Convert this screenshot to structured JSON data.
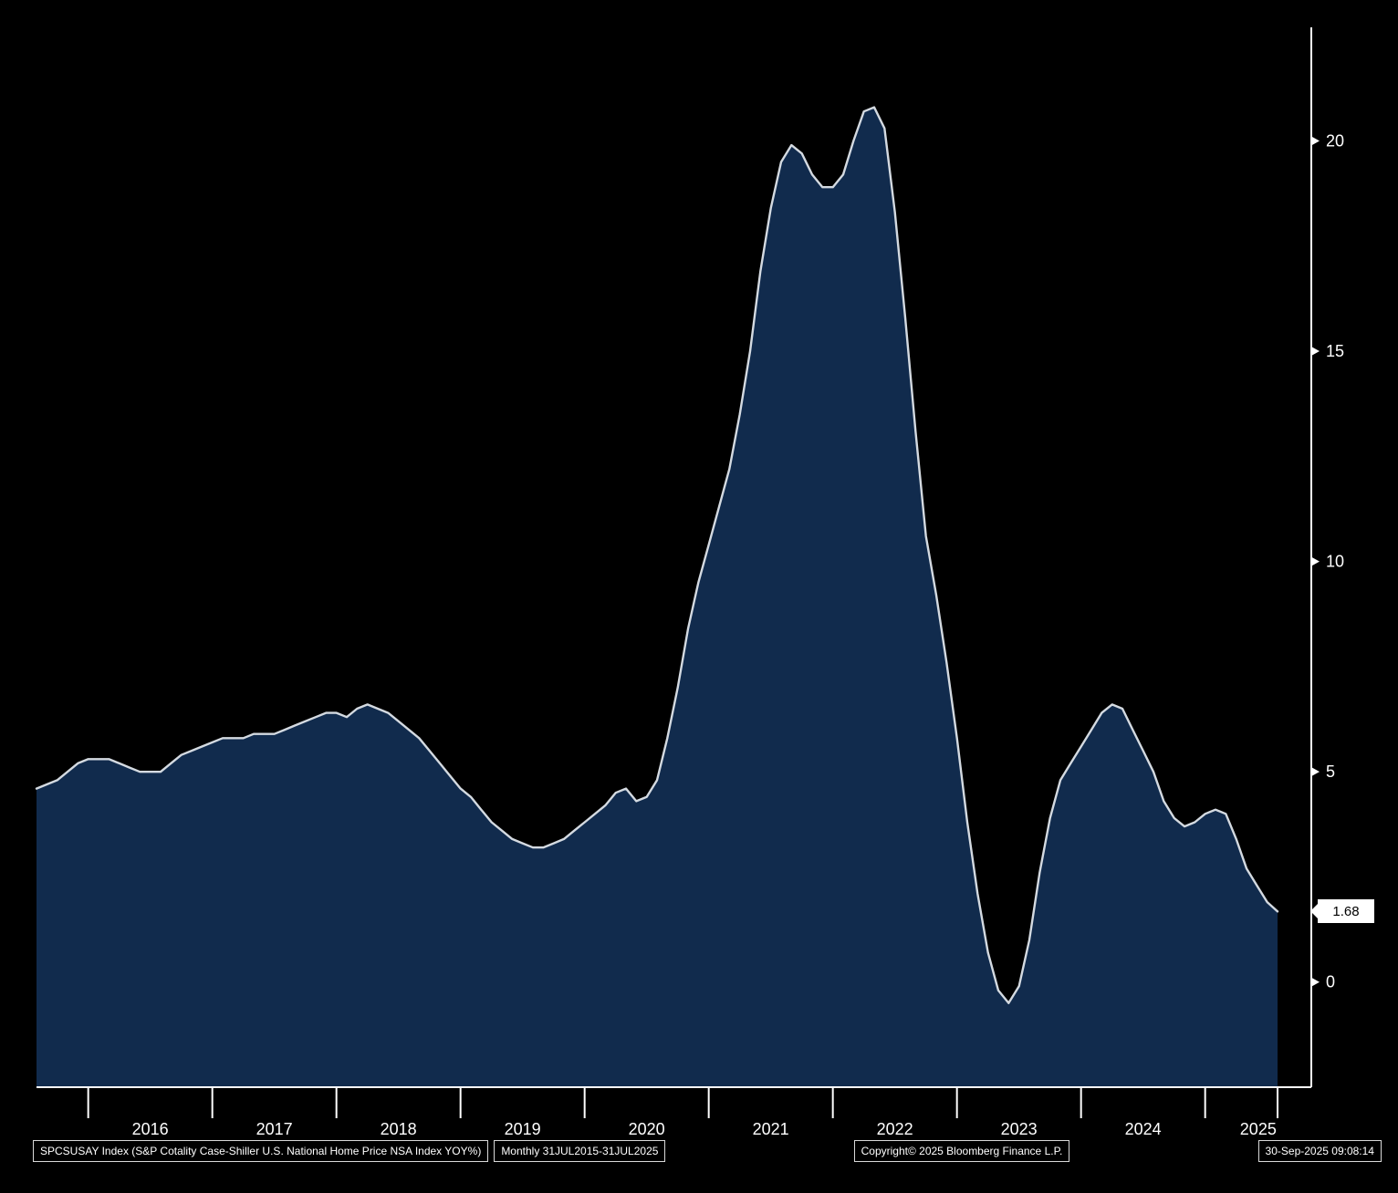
{
  "chart_data": {
    "type": "area",
    "title": "",
    "xlabel": "",
    "ylabel": "",
    "series_name": "SPCSUSAY Index",
    "x_start": 2015.5833,
    "x_step": "monthly",
    "values": [
      4.6,
      4.7,
      4.8,
      5.0,
      5.2,
      5.3,
      5.3,
      5.3,
      5.2,
      5.1,
      5.0,
      5.0,
      5.0,
      5.2,
      5.4,
      5.5,
      5.6,
      5.7,
      5.8,
      5.8,
      5.8,
      5.9,
      5.9,
      5.9,
      6.0,
      6.1,
      6.2,
      6.3,
      6.4,
      6.4,
      6.3,
      6.5,
      6.6,
      6.5,
      6.4,
      6.2,
      6.0,
      5.8,
      5.5,
      5.2,
      4.9,
      4.6,
      4.4,
      4.1,
      3.8,
      3.6,
      3.4,
      3.3,
      3.2,
      3.2,
      3.3,
      3.4,
      3.6,
      3.8,
      4.0,
      4.2,
      4.5,
      4.6,
      4.3,
      4.4,
      4.8,
      5.8,
      7.0,
      8.4,
      9.5,
      10.4,
      11.3,
      12.2,
      13.5,
      15.0,
      16.9,
      18.4,
      19.5,
      19.9,
      19.7,
      19.2,
      18.9,
      18.9,
      19.2,
      20.0,
      20.7,
      20.8,
      20.3,
      18.3,
      15.8,
      13.1,
      10.6,
      9.2,
      7.6,
      5.8,
      3.8,
      2.1,
      0.7,
      -0.2,
      -0.5,
      -0.1,
      1.0,
      2.6,
      3.9,
      4.8,
      5.2,
      5.6,
      6.0,
      6.4,
      6.6,
      6.5,
      6.0,
      5.5,
      5.0,
      4.3,
      3.9,
      3.7,
      3.8,
      4.0,
      4.1,
      4.0,
      3.4,
      2.7,
      2.3,
      1.9,
      1.68
    ],
    "ylim_draw": [
      -2.5,
      22.7
    ],
    "yticks": [
      0,
      5,
      10,
      15,
      20
    ],
    "x_year_ticks": [
      2016,
      2017,
      2018,
      2019,
      2020,
      2021,
      2022,
      2023,
      2024,
      2025
    ],
    "last_value_label": "1.68",
    "legend_position": "none",
    "grid": false,
    "colors": {
      "background": "#000000",
      "area_fill": "#112b4d",
      "line": "#d4dae1",
      "axis": "#ffffff",
      "tick_label": "#ffffff",
      "badge_bg": "#ffffff",
      "badge_text": "#000000"
    }
  },
  "footer": {
    "security": "SPCSUSAY Index (S&P Cotality Case-Shiller U.S. National Home Price NSA Index YOY%)",
    "period": "Monthly 31JUL2015-31JUL2025",
    "copyright": "Copyright© 2025 Bloomberg Finance L.P.",
    "timestamp": "30-Sep-2025 09:08:14"
  }
}
